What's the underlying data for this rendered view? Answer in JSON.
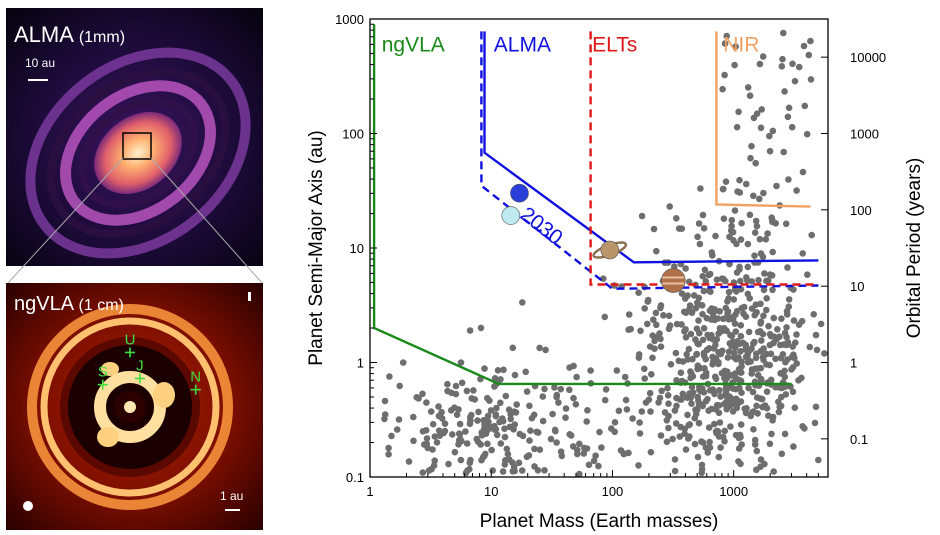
{
  "alma_panel": {
    "title": "ALMA",
    "subtitle": "(1mm)",
    "scalebar": "10 au"
  },
  "ngvla_panel": {
    "title": "ngVLA",
    "subtitle": "(1 cm)",
    "scalebar": "1 au",
    "planet_markers": [
      {
        "label": "U",
        "sx": 0.0,
        "sy": -0.44
      },
      {
        "label": "S",
        "sx": -0.22,
        "sy": -0.18
      },
      {
        "label": "J",
        "sx": 0.08,
        "sy": -0.23
      },
      {
        "label": "N",
        "sx": 0.53,
        "sy": -0.14
      }
    ]
  },
  "chart_data": {
    "type": "scatter",
    "xlabel": "Planet Mass (Earth masses)",
    "ylabel": "Planet Semi-Major Axis (au)",
    "y2label": "Orbital Period (years)",
    "x_scale": "log",
    "y_scale": "log",
    "xlim": [
      1,
      6000
    ],
    "ylim": [
      0.1,
      1000
    ],
    "x_ticks": [
      "1",
      "10",
      "100",
      "1000"
    ],
    "y_ticks": [
      "0.1",
      "1",
      "10",
      "100",
      "1000"
    ],
    "y2_ticks": [
      "0.1",
      "1",
      "10",
      "100",
      "1000",
      "10000"
    ],
    "colors": {
      "points": "#6e6e6e",
      "ngvla": "#1a8a1a",
      "alma": "#1010e0",
      "elts": "#e01818",
      "nir": "#f0a060"
    },
    "region_labels": [
      {
        "text": "ngVLA",
        "color": "#1a8a1a",
        "x": 1.25,
        "y": 520
      },
      {
        "text": "ALMA",
        "color": "#1010e0",
        "x": 10.5,
        "y": 520
      },
      {
        "text": "ELTs",
        "color": "#e01818",
        "x": 68,
        "y": 520
      },
      {
        "text": "NIR",
        "color": "#f0a060",
        "x": 820,
        "y": 520
      }
    ],
    "annotation": {
      "text": "2030",
      "x": 24,
      "y": 14,
      "rotation": 38,
      "color": "#1010e0"
    },
    "lines": [
      {
        "name": "ngvla-limit",
        "color": "#1a8a1a",
        "dash": false,
        "points": [
          [
            1.08,
            900
          ],
          [
            1.08,
            2
          ],
          [
            11.5,
            0.65
          ],
          [
            3000,
            0.65
          ]
        ]
      },
      {
        "name": "alma-limit",
        "color": "#1010e0",
        "dash": false,
        "points": [
          [
            8.8,
            780
          ],
          [
            8.8,
            68
          ],
          [
            150,
            7.5
          ],
          [
            5000,
            7.8
          ]
        ]
      },
      {
        "name": "alma-2030-limit",
        "color": "#1010e0",
        "dash": true,
        "points": [
          [
            8.3,
            780
          ],
          [
            8.3,
            35
          ],
          [
            100,
            4.4
          ],
          [
            5000,
            4.7
          ]
        ]
      },
      {
        "name": "elts-limit",
        "color": "#e01818",
        "dash": true,
        "points": [
          [
            66,
            780
          ],
          [
            66,
            4.8
          ],
          [
            5000,
            4.8
          ]
        ]
      },
      {
        "name": "nir-limit",
        "color": "#f0a060",
        "dash": false,
        "points": [
          [
            720,
            780
          ],
          [
            720,
            24
          ],
          [
            4300,
            23
          ]
        ]
      }
    ],
    "solar_system_planets": [
      {
        "name": "Neptune",
        "x": 17.1,
        "y": 30.1,
        "color": "#2a3fd8",
        "r": 9
      },
      {
        "name": "Uranus",
        "x": 14.5,
        "y": 19.2,
        "color": "#bfe9f0",
        "r": 9
      },
      {
        "name": "Saturn",
        "x": 95,
        "y": 9.6,
        "color": "#b8966a",
        "r": 9
      },
      {
        "name": "Jupiter",
        "x": 318,
        "y": 5.2,
        "color": "#b0704a",
        "r": 12
      }
    ]
  }
}
